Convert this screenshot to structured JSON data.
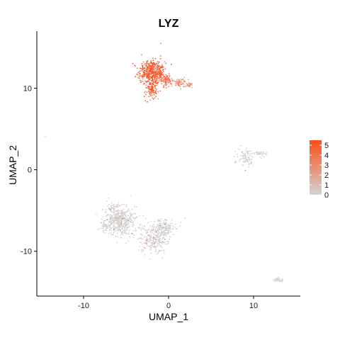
{
  "chart_data": {
    "type": "scatter",
    "title": "LYZ",
    "xlabel": "UMAP_1",
    "ylabel": "UMAP_2",
    "xlim": [
      -15.5,
      15.5
    ],
    "ylim": [
      -15.5,
      17
    ],
    "x_ticks": [
      -10,
      0,
      10
    ],
    "y_ticks": [
      -10,
      0,
      10
    ],
    "x_tick_labels": [
      "-10",
      "0",
      "10"
    ],
    "y_tick_labels": [
      "-10",
      "0",
      "10"
    ],
    "grid": false,
    "legend_position": "right",
    "color_scale": {
      "min": 0,
      "max": 5.5,
      "low_color": "#d3d3d3",
      "high_color": "#fc4e1a",
      "breaks": [
        0,
        1,
        2,
        3,
        4,
        5
      ],
      "break_labels": [
        "0",
        "1",
        "2",
        "3",
        "4",
        "5"
      ]
    },
    "clusters": [
      {
        "cx": -2.0,
        "cy": 12.0,
        "sx": 1.1,
        "sy": 1.0,
        "n": 420,
        "expr": 4.6
      },
      {
        "cx": -2.0,
        "cy": 9.8,
        "sx": 0.5,
        "sy": 1.0,
        "n": 110,
        "expr": 4.3
      },
      {
        "cx": -0.3,
        "cy": 11.0,
        "sx": 0.6,
        "sy": 0.6,
        "n": 90,
        "expr": 3.6
      },
      {
        "cx": 1.3,
        "cy": 10.7,
        "sx": 0.7,
        "sy": 0.4,
        "n": 70,
        "expr": 2.3
      },
      {
        "cx": 2.5,
        "cy": 10.4,
        "sx": 0.3,
        "sy": 0.2,
        "n": 30,
        "expr": 1.8
      },
      {
        "cx": 9.0,
        "cy": 1.6,
        "sx": 0.8,
        "sy": 0.9,
        "n": 90,
        "expr": 0.05
      },
      {
        "cx": 10.8,
        "cy": 1.9,
        "sx": 0.6,
        "sy": 0.3,
        "n": 30,
        "expr": 0.05
      },
      {
        "cx": -5.5,
        "cy": -6.5,
        "sx": 1.3,
        "sy": 1.2,
        "n": 380,
        "expr": 0.2
      },
      {
        "cx": -6.3,
        "cy": -5.5,
        "sx": 0.8,
        "sy": 1.2,
        "n": 140,
        "expr": 0.2
      },
      {
        "cx": -1.7,
        "cy": -8.5,
        "sx": 1.2,
        "sy": 1.3,
        "n": 260,
        "expr": 0.2
      },
      {
        "cx": -0.6,
        "cy": -7.2,
        "sx": 1.0,
        "sy": 0.8,
        "n": 160,
        "expr": 0.2
      },
      {
        "cx": -7.6,
        "cy": -6.9,
        "sx": 0.5,
        "sy": 0.5,
        "n": 40,
        "expr": 0.2
      },
      {
        "cx": 12.8,
        "cy": -13.5,
        "sx": 0.5,
        "sy": 0.2,
        "n": 35,
        "expr": 0.05
      }
    ],
    "outliers": [
      {
        "x": -14.5,
        "y": 4.1,
        "expr": 0
      },
      {
        "x": -0.9,
        "y": 15.5,
        "expr": 4
      },
      {
        "x": -8.5,
        "y": -5.4,
        "expr": 0
      },
      {
        "x": 13.4,
        "y": -13.7,
        "expr": 0
      }
    ]
  }
}
